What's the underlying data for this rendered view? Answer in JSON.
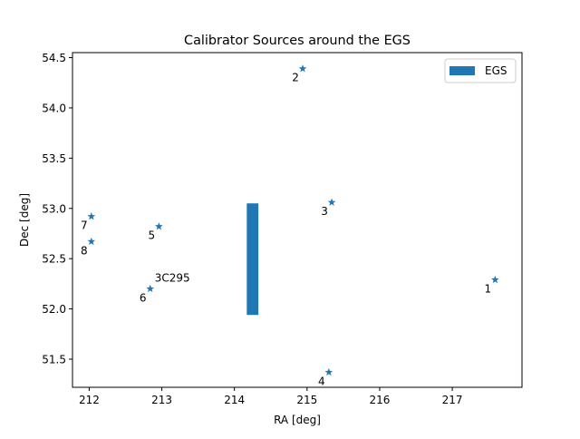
{
  "chart_data": {
    "type": "scatter",
    "title": "Calibrator Sources around the EGS",
    "xlabel": "RA [deg]",
    "ylabel": "Dec [deg]",
    "xlim": [
      211.77,
      217.96
    ],
    "ylim": [
      51.22,
      54.55
    ],
    "xticks": [
      212,
      213,
      214,
      215,
      216,
      217
    ],
    "yticks": [
      51.5,
      52.0,
      52.5,
      53.0,
      53.5,
      54.0,
      54.5
    ],
    "grid": false,
    "legend": {
      "placement": "top-right",
      "entries": [
        "EGS"
      ]
    },
    "series": [
      {
        "name": "EGS",
        "type": "bar",
        "x_range": [
          214.17,
          214.33
        ],
        "y_range": [
          51.94,
          53.05
        ]
      },
      {
        "type": "scatter",
        "marker": "star",
        "points": [
          {
            "label": "1",
            "x": 217.59,
            "y": 52.29
          },
          {
            "label": "2",
            "x": 214.94,
            "y": 54.39
          },
          {
            "label": "3",
            "x": 215.34,
            "y": 53.06
          },
          {
            "label": "4",
            "x": 215.3,
            "y": 51.37
          },
          {
            "label": "5",
            "x": 212.96,
            "y": 52.82
          },
          {
            "label": "6",
            "x": 212.84,
            "y": 52.2
          },
          {
            "label": "7",
            "x": 212.03,
            "y": 52.92
          },
          {
            "label": "8",
            "x": 212.03,
            "y": 52.67
          }
        ]
      }
    ],
    "annotations": [
      {
        "text": "3C295",
        "x": 212.84,
        "y": 52.2
      }
    ]
  },
  "colors": {
    "series": "#1f77b4",
    "axis": "#000000",
    "legend_border": "#cccccc"
  }
}
